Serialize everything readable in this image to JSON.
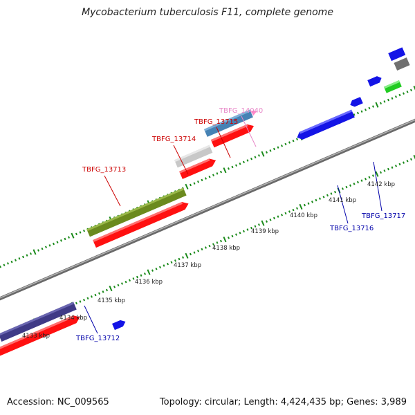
{
  "title": "Mycobacterium tuberculosis F11, complete genome",
  "footer": {
    "accession": "Accession: NC_009565",
    "summary": "Topology: circular; Length: 4,424,435 bp; Genes: 3,989"
  },
  "colors": {
    "backbone": "#8c8c8c",
    "tick": "#1a8a1a",
    "cds_red": "#ff1010",
    "gene_olive": "#6b8a1e",
    "gene_gray": "#c8c8c8",
    "gene_steelblue": "#4682b4",
    "gene_slate": "#3f3a86",
    "gene_blue": "#1414e6",
    "gene_green": "#22cc22",
    "gene_darkgray": "#707070",
    "label_red": "#cc0000",
    "label_blue": "#0000aa",
    "label_pink": "#e888c8"
  },
  "scale": {
    "ticks": [
      {
        "label": "4133 kbp"
      },
      {
        "label": "4134 kbp"
      },
      {
        "label": "4135 kbp"
      },
      {
        "label": "4136 kbp"
      },
      {
        "label": "4137 kbp"
      },
      {
        "label": "4138 kbp"
      },
      {
        "label": "4139 kbp"
      },
      {
        "label": "4140 kbp"
      },
      {
        "label": "4141 kbp"
      },
      {
        "label": "4142 kbp"
      }
    ]
  },
  "gene_labels": {
    "tbfg_13713": "TBFG_13713",
    "tbfg_13714": "TBFG_13714",
    "tbfg_13715": "TBFG_13715",
    "tbfg_14040": "TBFG_14040",
    "tbfg_13712": "TBFG_13712",
    "tbfg_13716": "TBFG_13716",
    "tbfg_13717": "TBFG_13717"
  }
}
